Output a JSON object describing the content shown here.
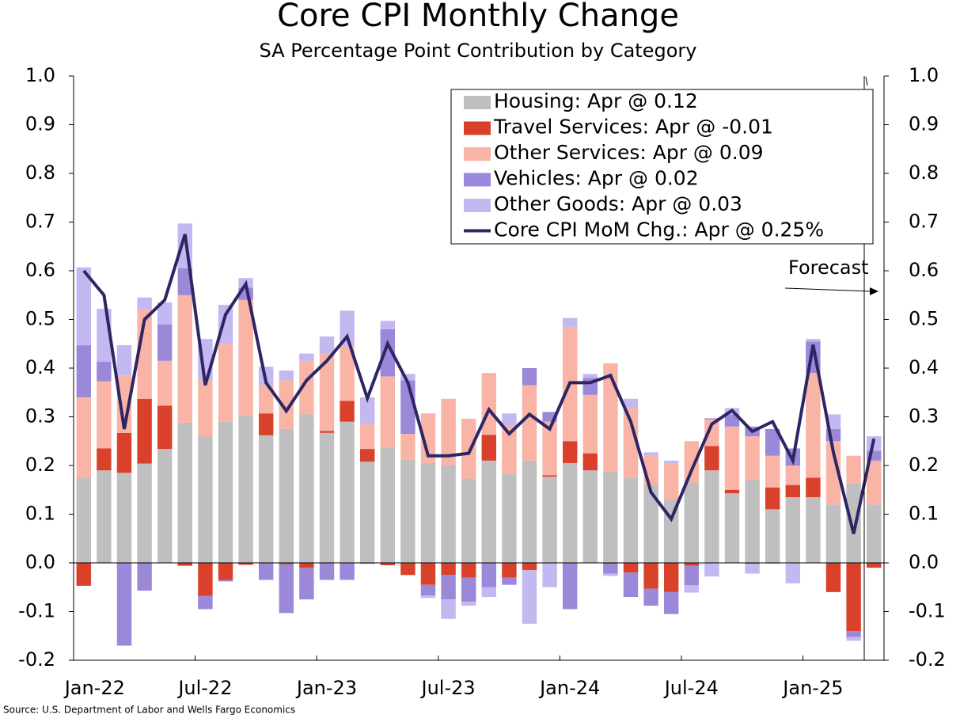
{
  "chart_data": {
    "type": "bar",
    "stacked": true,
    "title": "Core CPI Monthly Change",
    "subtitle": "SA Percentage Point Contribution by Category",
    "source": "Source: U.S. Department of Labor and Wells Fargo Economics",
    "annotation": "Forecast",
    "categories": [
      "Jan-22",
      null,
      null,
      null,
      null,
      null,
      "Jul-22",
      null,
      null,
      null,
      null,
      null,
      "Jan-23",
      null,
      null,
      null,
      null,
      null,
      "Jul-23",
      null,
      null,
      null,
      null,
      null,
      "Jan-24",
      null,
      null,
      null,
      null,
      null,
      "Jul-24",
      null,
      null,
      null,
      null,
      null,
      "Jan-25",
      null,
      null,
      null
    ],
    "ylim": [
      -0.2,
      1.0
    ],
    "yticks": [
      {
        "value": 1.0,
        "label": "1.0"
      },
      0.9,
      0.8,
      0.7,
      0.6,
      0.5,
      0.4,
      0.3,
      0.2,
      0.1,
      {
        "value": 0,
        "label": "0.0"
      },
      -0.1,
      -0.2
    ],
    "legend": "upper right",
    "series": [
      {
        "name": "Housing: Apr @ 0.12",
        "color": "#bfbfbf",
        "values": [
          0.174,
          0.19,
          0.185,
          0.204,
          0.234,
          0.288,
          0.26,
          0.29,
          0.302,
          0.262,
          0.275,
          0.305,
          0.267,
          0.29,
          0.208,
          0.237,
          0.212,
          0.205,
          0.2,
          0.173,
          0.21,
          0.183,
          0.21,
          0.177,
          0.205,
          0.19,
          0.188,
          0.175,
          0.16,
          0.13,
          0.165,
          0.19,
          0.143,
          0.17,
          0.11,
          0.135,
          0.135,
          0.12,
          0.163,
          0.12
        ]
      },
      {
        "name": "Travel Services: Apr @ -0.01",
        "color": "#d9412b",
        "values": [
          -0.047,
          0.045,
          0.082,
          0.133,
          0.089,
          -0.006,
          -0.068,
          -0.035,
          -0.004,
          0.045,
          -0.003,
          -0.01,
          0.004,
          0.043,
          0.026,
          -0.005,
          -0.025,
          -0.045,
          -0.025,
          -0.03,
          0.053,
          -0.03,
          -0.015,
          0.003,
          0.045,
          0.035,
          -0.002,
          -0.02,
          -0.053,
          -0.06,
          -0.006,
          0.05,
          0.007,
          -0.002,
          0.045,
          0.025,
          0.04,
          -0.06,
          -0.14,
          -0.01
        ]
      },
      {
        "name": "Other Services: Apr @ 0.09",
        "color": "#f9b4a6",
        "values": [
          0.166,
          0.138,
          0.118,
          0.183,
          0.092,
          0.262,
          0.115,
          0.16,
          0.238,
          0.058,
          0.1,
          0.11,
          0.159,
          0.112,
          0.051,
          0.146,
          0.053,
          0.102,
          0.137,
          0.123,
          0.127,
          0.1,
          0.155,
          0.11,
          0.235,
          0.12,
          0.222,
          0.143,
          0.06,
          0.075,
          0.085,
          0.055,
          0.13,
          0.09,
          0.065,
          0.04,
          0.215,
          0.13,
          0.057,
          0.09
        ]
      },
      {
        "name": "Vehicles: Apr @ 0.02",
        "color": "#9b88d9",
        "values": [
          0.107,
          0.04,
          -0.17,
          -0.057,
          0.075,
          0.055,
          -0.027,
          -0.003,
          0.025,
          -0.035,
          -0.1,
          -0.065,
          -0.035,
          -0.035,
          -0.002,
          0.097,
          0.11,
          -0.022,
          -0.05,
          -0.05,
          -0.05,
          -0.015,
          0.035,
          0.02,
          -0.095,
          0.035,
          -0.02,
          -0.05,
          -0.035,
          -0.045,
          -0.04,
          0.002,
          0.025,
          0.02,
          0.055,
          0.035,
          0.065,
          0.025,
          -0.012,
          0.02
        ]
      },
      {
        "name": "Other Goods: Apr @ 0.03",
        "color": "#c4b8f0",
        "values": [
          0.16,
          0.109,
          0.062,
          0.025,
          0.045,
          0.092,
          0.085,
          0.08,
          0.02,
          0.038,
          0.02,
          0.015,
          0.035,
          0.073,
          0.055,
          0.017,
          0.013,
          -0.005,
          -0.04,
          -0.008,
          -0.02,
          0.024,
          -0.11,
          -0.05,
          0.018,
          0.008,
          -0.005,
          0.019,
          0.007,
          0.005,
          -0.015,
          -0.028,
          0.013,
          -0.02,
          -0.002,
          -0.042,
          0.005,
          0.03,
          -0.008,
          0.03
        ]
      },
      {
        "name": "Core CPI MoM Chg.: Apr @ 0.25%",
        "type": "line",
        "color": "#2e2664",
        "values": [
          0.6,
          0.55,
          0.275,
          0.5,
          0.54,
          0.675,
          0.365,
          0.51,
          0.573,
          0.37,
          0.312,
          0.375,
          0.415,
          0.465,
          0.338,
          0.45,
          0.37,
          0.22,
          0.22,
          0.225,
          0.315,
          0.265,
          0.305,
          0.275,
          0.37,
          0.37,
          0.385,
          0.29,
          0.145,
          0.09,
          0.19,
          0.285,
          0.313,
          0.27,
          0.29,
          0.21,
          0.448,
          0.227,
          0.06,
          0.255
        ]
      }
    ]
  }
}
